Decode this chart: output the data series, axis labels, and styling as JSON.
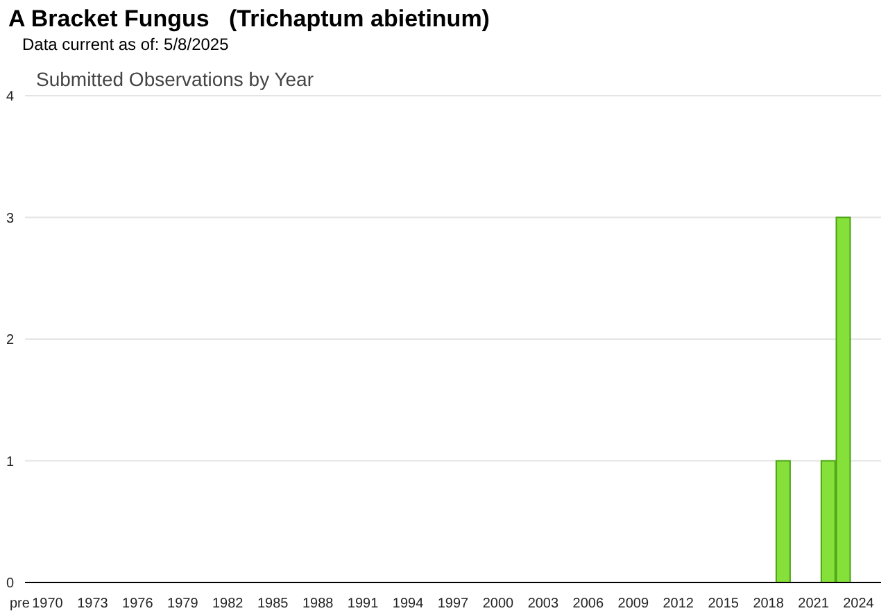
{
  "chart_data": {
    "type": "bar",
    "title": "A Bracket Fungus   (Trichaptum abietinum)",
    "subtitle": "Data current as of: 5/8/2025",
    "annotations": [
      "Submitted Observations by Year"
    ],
    "categories": [
      "pre",
      "1970",
      null,
      null,
      "1973",
      null,
      null,
      "1976",
      null,
      null,
      "1979",
      null,
      null,
      "1982",
      null,
      null,
      "1985",
      null,
      null,
      "1988",
      null,
      null,
      "1991",
      null,
      null,
      "1994",
      null,
      null,
      "1997",
      null,
      null,
      "2000",
      null,
      null,
      "2003",
      null,
      null,
      "2006",
      null,
      null,
      "2009",
      null,
      null,
      "2012",
      null,
      null,
      "2015",
      null,
      null,
      "2018",
      null,
      null,
      "2021",
      null,
      null,
      "2024",
      null
    ],
    "values": [
      0,
      0,
      0,
      0,
      0,
      0,
      0,
      0,
      0,
      0,
      0,
      0,
      0,
      0,
      0,
      0,
      0,
      0,
      0,
      0,
      0,
      0,
      0,
      0,
      0,
      0,
      0,
      0,
      0,
      0,
      0,
      0,
      0,
      0,
      0,
      0,
      0,
      0,
      0,
      0,
      0,
      0,
      0,
      0,
      0,
      0,
      0,
      0,
      0,
      0,
      1,
      0,
      0,
      1,
      3,
      0,
      0
    ],
    "color": "#86e03a",
    "ylim": [
      0,
      4
    ],
    "yticks": [
      0,
      1,
      2,
      3,
      4
    ],
    "grid": "y"
  }
}
